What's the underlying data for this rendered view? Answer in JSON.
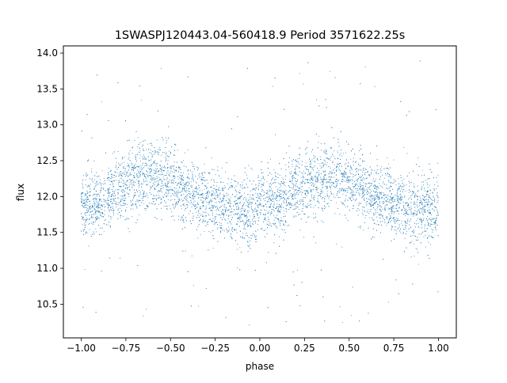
{
  "chart_data": {
    "type": "scatter",
    "title": "1SWASPJ120443.04-560418.9 Period 3571622.25s",
    "xlabel": "phase",
    "ylabel": "flux",
    "xlim": [
      -1.1,
      1.1
    ],
    "ylim": [
      10.03,
      14.1
    ],
    "x_ticks": [
      -1.0,
      -0.75,
      -0.5,
      -0.25,
      0.0,
      0.25,
      0.5,
      0.75,
      1.0
    ],
    "x_tick_labels": [
      "−1.00",
      "−0.75",
      "−0.50",
      "−0.25",
      "0.00",
      "0.25",
      "0.50",
      "0.75",
      "1.00"
    ],
    "y_ticks": [
      10.5,
      11.0,
      11.5,
      12.0,
      12.5,
      13.0,
      13.5,
      14.0
    ],
    "y_tick_labels": [
      "10.5",
      "11.0",
      "11.5",
      "12.0",
      "12.5",
      "13.0",
      "13.5",
      "14.0"
    ],
    "grid": false,
    "legend": "none",
    "marker_color": "#1f77b4",
    "phase_range": [
      -1.0,
      1.0
    ],
    "envelope": {
      "phase": [
        -1.0,
        -0.9,
        -0.8,
        -0.7,
        -0.6,
        -0.5,
        -0.4,
        -0.3,
        -0.2,
        -0.1,
        0.0,
        0.1,
        0.2,
        0.3,
        0.4,
        0.5,
        0.6,
        0.7,
        0.8,
        0.9,
        1.0
      ],
      "median_flux": [
        11.85,
        11.9,
        12.1,
        12.25,
        12.3,
        12.2,
        12.05,
        11.95,
        11.85,
        11.8,
        11.85,
        11.9,
        12.1,
        12.25,
        12.3,
        12.2,
        12.05,
        11.95,
        11.85,
        11.8,
        11.85
      ],
      "scatter_sigma": [
        0.22,
        0.22,
        0.23,
        0.24,
        0.24,
        0.23,
        0.22,
        0.22,
        0.23,
        0.24,
        0.22,
        0.22,
        0.23,
        0.24,
        0.24,
        0.23,
        0.22,
        0.22,
        0.23,
        0.24,
        0.22
      ]
    },
    "outlier_flux_range": [
      10.2,
      13.9
    ]
  }
}
